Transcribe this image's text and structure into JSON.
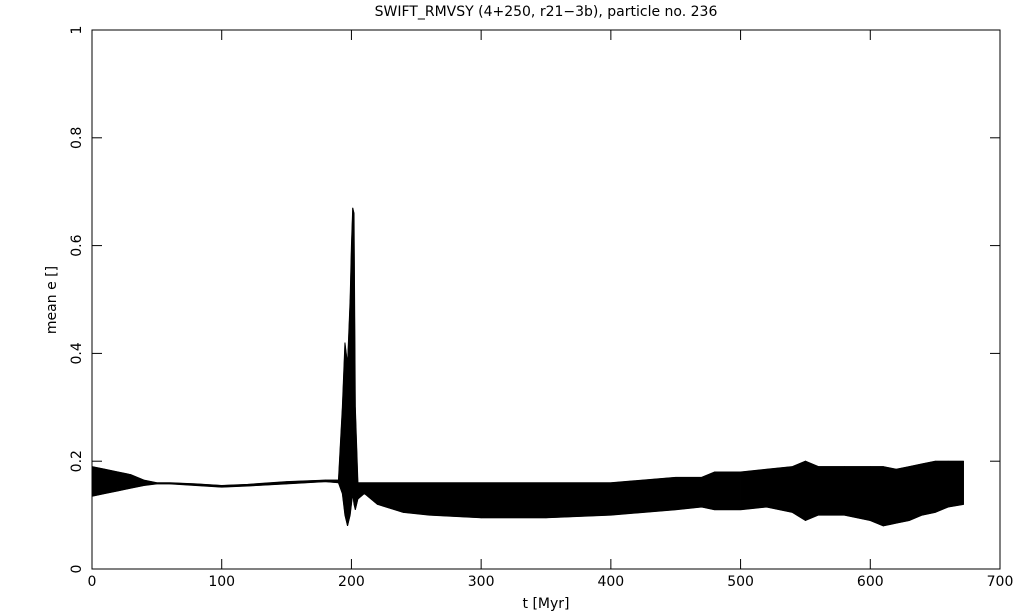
{
  "chart_data": {
    "type": "band",
    "title": "SWIFT_RMVSY (4+250, r21−3b), particle no. 236",
    "xlabel": "t [Myr]",
    "ylabel": "mean e []",
    "color": "#000000",
    "x": [
      0,
      10,
      20,
      30,
      40,
      50,
      60,
      80,
      100,
      120,
      150,
      180,
      190,
      193,
      195,
      197,
      199,
      200,
      201,
      202,
      203,
      205,
      210,
      220,
      240,
      260,
      300,
      350,
      400,
      450,
      470,
      480,
      500,
      520,
      540,
      550,
      560,
      580,
      600,
      610,
      620,
      630,
      640,
      650,
      660,
      672
    ],
    "upper": [
      0.19,
      0.185,
      0.18,
      0.175,
      0.165,
      0.16,
      0.16,
      0.158,
      0.155,
      0.157,
      0.162,
      0.165,
      0.165,
      0.3,
      0.42,
      0.38,
      0.5,
      0.6,
      0.67,
      0.66,
      0.3,
      0.16,
      0.16,
      0.16,
      0.16,
      0.16,
      0.16,
      0.16,
      0.16,
      0.17,
      0.17,
      0.18,
      0.18,
      0.185,
      0.19,
      0.2,
      0.19,
      0.19,
      0.19,
      0.19,
      0.185,
      0.19,
      0.195,
      0.2,
      0.2,
      0.2
    ],
    "lower": [
      0.135,
      0.14,
      0.145,
      0.15,
      0.155,
      0.158,
      0.158,
      0.155,
      0.152,
      0.154,
      0.158,
      0.162,
      0.16,
      0.14,
      0.1,
      0.08,
      0.1,
      0.12,
      0.14,
      0.12,
      0.11,
      0.13,
      0.14,
      0.12,
      0.105,
      0.1,
      0.095,
      0.095,
      0.1,
      0.11,
      0.115,
      0.11,
      0.11,
      0.115,
      0.105,
      0.09,
      0.1,
      0.1,
      0.09,
      0.08,
      0.085,
      0.09,
      0.1,
      0.105,
      0.115,
      0.12
    ],
    "xlim": [
      0,
      700
    ],
    "xticks": [
      0,
      100,
      200,
      300,
      400,
      500,
      600,
      700
    ],
    "ylim": [
      0,
      1
    ],
    "yticks": [
      0,
      0.2,
      0.4,
      0.6,
      0.8,
      1
    ]
  }
}
